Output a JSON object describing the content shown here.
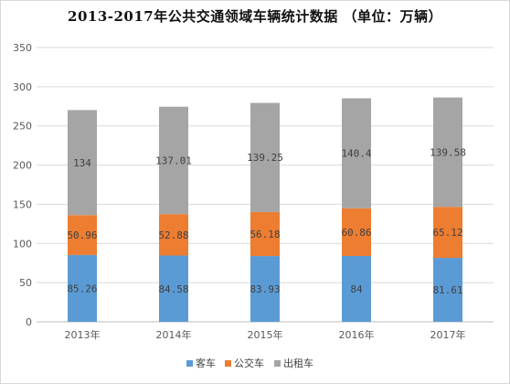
{
  "chart_data": {
    "type": "bar",
    "stacked": true,
    "title": "2013-2017年公共交通领域车辆统计数据 （单位：万辆）",
    "categories": [
      "2013年",
      "2014年",
      "2015年",
      "2016年",
      "2017年"
    ],
    "series": [
      {
        "name": "客车",
        "values": [
          85.26,
          84.58,
          83.93,
          84,
          81.61
        ],
        "color": "#5b9bd5"
      },
      {
        "name": "公交车",
        "values": [
          50.96,
          52.88,
          56.18,
          60.86,
          65.12
        ],
        "color": "#ed7d31"
      },
      {
        "name": "出租车",
        "values": [
          134,
          137.01,
          139.25,
          140.4,
          139.58
        ],
        "color": "#a5a5a5"
      }
    ],
    "ylim": [
      0,
      350
    ],
    "yticks": [
      0,
      50,
      100,
      150,
      200,
      250,
      300,
      350
    ],
    "grid": true,
    "legend": "bottom"
  }
}
